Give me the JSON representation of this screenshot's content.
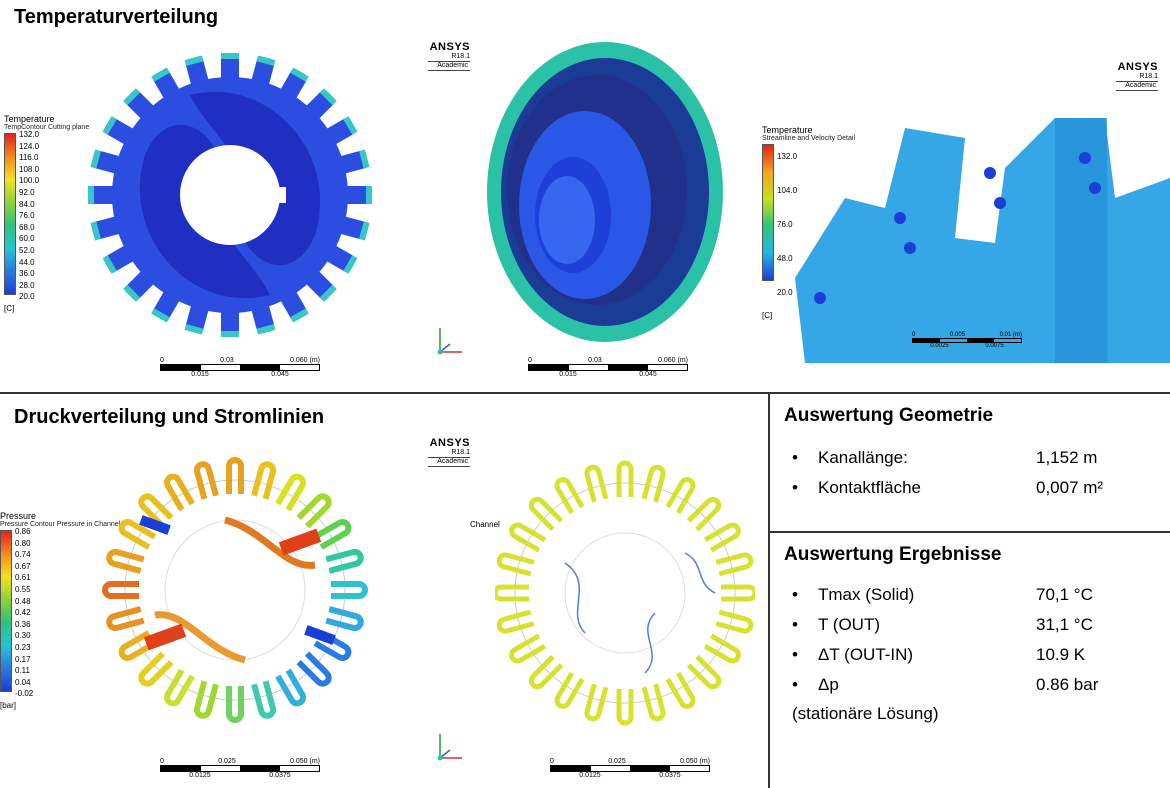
{
  "sections": {
    "temp_title": "Temperaturverteilung",
    "pressure_title": "Druckverteilung und Stromlinien"
  },
  "ansys": {
    "brand": "ANSYS",
    "version": "R18.1",
    "edition": "Academic"
  },
  "temp_legend_1": {
    "title": "Temperature",
    "subtitle": "TempContour Cutting plane",
    "ticks": [
      "132.0",
      "124.0",
      "116.0",
      "108.0",
      "100.0",
      "92.0",
      "84.0",
      "76.0",
      "68.0",
      "60.0",
      "52.0",
      "44.0",
      "36.0",
      "28.0",
      "20.0"
    ],
    "unit": "[C]"
  },
  "temp_legend_2": {
    "title": "Temperature",
    "subtitle": "Streamline and Velocity Detail",
    "ticks": [
      "132.0",
      "104.0",
      "76.0",
      "48.0",
      "20.0"
    ],
    "unit": "[C]"
  },
  "pressure_legend": {
    "title": "Pressure",
    "subtitle": "Pressure Contour Pressure in Channels",
    "ticks": [
      "0.86",
      "0.80",
      "0.74",
      "0.67",
      "0.61",
      "0.55",
      "0.48",
      "0.42",
      "0.36",
      "0.30",
      "0.23",
      "0.17",
      "0.11",
      "0.04",
      "-0.02"
    ],
    "unit": "[bar]"
  },
  "channel_label": "Channel",
  "scales": {
    "large": {
      "top": [
        "0",
        "0.03",
        "0.060  (m)"
      ],
      "bottom": [
        "0.015",
        "0.045"
      ]
    },
    "small": {
      "top": [
        "0",
        "0.025",
        "0.050  (m)"
      ],
      "bottom": [
        "0.0125",
        "0.0375"
      ]
    },
    "detail": {
      "top": [
        "0",
        "0.005",
        "0.01  (m)"
      ],
      "bottom": [
        "0.0025",
        "0.0075"
      ]
    }
  },
  "geometry": {
    "title": "Auswertung  Geometrie",
    "rows": [
      {
        "label": "Kanallänge:",
        "value": "1,152 m"
      },
      {
        "label": "Kontaktfläche",
        "value": "0,007 m²"
      }
    ]
  },
  "results": {
    "title": "Auswertung  Ergebnisse",
    "rows": [
      {
        "label": "Tmax (Solid)",
        "value": "70,1 °C"
      },
      {
        "label": "T (OUT)",
        "value": "31,1 °C"
      },
      {
        "label": "ΔT (OUT-IN)",
        "value": "10.9 K"
      },
      {
        "label": "Δp",
        "value": "0.86 bar"
      }
    ],
    "note": "(stationäre Lösung)"
  },
  "bullet": "•",
  "colors": {
    "cool": "#1a3fd6",
    "mid": "#37c7c7",
    "warm": "#e8e02a",
    "hot": "#e2401c"
  }
}
